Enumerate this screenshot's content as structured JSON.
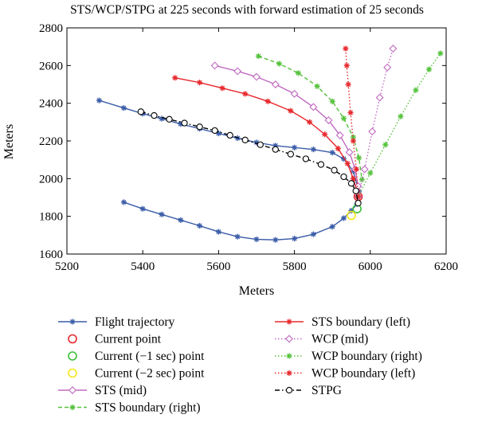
{
  "chart_data": {
    "type": "line",
    "title": "STS/WCP/STPG at 225 seconds with forward estimation of 25 seconds",
    "xlabel": "Meters",
    "ylabel": "Meters",
    "xlim": [
      5200,
      6200
    ],
    "ylim": [
      1600,
      2800
    ],
    "x_ticks": [
      "5200",
      "5400",
      "5600",
      "5800",
      "6000",
      "6200"
    ],
    "y_ticks": [
      "1600",
      "1800",
      "2000",
      "2200",
      "2400",
      "2600",
      "2800"
    ],
    "grid": false,
    "legend_position": "below-plot",
    "series": [
      {
        "name": "Flight trajectory",
        "color": "#3a5ca8",
        "marker": "asterisk",
        "line": "solid",
        "x": [
          5350,
          5400,
          5450,
          5500,
          5550,
          5600,
          5650,
          5700,
          5750,
          5800,
          5850,
          5900,
          5930,
          5950,
          5965
        ],
        "y": [
          1875,
          1840,
          1810,
          1780,
          1750,
          1718,
          1692,
          1678,
          1675,
          1682,
          1705,
          1745,
          1790,
          1830,
          1865
        ]
      },
      {
        "name": "Flight trajectory",
        "color": "#3a5ca8",
        "marker": "asterisk",
        "line": "solid",
        "x": [
          5285,
          5350,
          5400,
          5450,
          5500,
          5550,
          5600,
          5650,
          5700,
          5750,
          5800,
          5850,
          5900,
          5930,
          5955,
          5970
        ],
        "y": [
          2415,
          2375,
          2345,
          2318,
          2290,
          2265,
          2240,
          2215,
          2192,
          2175,
          2165,
          2155,
          2138,
          2105,
          2040,
          1930
        ]
      },
      {
        "name": "Current point",
        "color": "#e8282d",
        "marker": "circle",
        "line": "none",
        "x": [
          5968
        ],
        "y": [
          1905
        ]
      },
      {
        "name": "Current (−1 sec) point",
        "color": "#3cbf3c",
        "marker": "circle",
        "line": "none",
        "x": [
          5965
        ],
        "y": [
          1840
        ]
      },
      {
        "name": "Current (−2 sec) point",
        "color": "#f2e61a",
        "marker": "circle",
        "line": "none",
        "x": [
          5950
        ],
        "y": [
          1805
        ]
      },
      {
        "name": "STS (mid)",
        "color": "#c06ac0",
        "marker": "diamond",
        "line": "solid",
        "x": [
          5590,
          5650,
          5700,
          5750,
          5800,
          5850,
          5890,
          5920,
          5945,
          5960,
          5968
        ],
        "y": [
          2600,
          2570,
          2540,
          2500,
          2450,
          2380,
          2310,
          2230,
          2140,
          2050,
          1960
        ]
      },
      {
        "name": "STS boundary (right)",
        "color": "#55c23c",
        "marker": "asterisk",
        "line": "dashed",
        "x": [
          5705,
          5760,
          5810,
          5860,
          5900,
          5930,
          5955,
          5970,
          5978
        ],
        "y": [
          2650,
          2610,
          2560,
          2490,
          2410,
          2320,
          2220,
          2110,
          1995
        ]
      },
      {
        "name": "STS boundary (left)",
        "color": "#e8282d",
        "marker": "asterisk",
        "line": "solid",
        "x": [
          5485,
          5550,
          5610,
          5670,
          5730,
          5790,
          5840,
          5880,
          5915,
          5940,
          5955,
          5965
        ],
        "y": [
          2535,
          2510,
          2480,
          2450,
          2410,
          2360,
          2300,
          2235,
          2160,
          2080,
          2000,
          1935
        ]
      },
      {
        "name": "WCP (mid)",
        "color": "#c06ac0",
        "marker": "diamond",
        "line": "dotted",
        "x": [
          5968,
          5985,
          6005,
          6025,
          6045,
          6060
        ],
        "y": [
          1905,
          2050,
          2250,
          2430,
          2590,
          2690
        ]
      },
      {
        "name": "WCP boundary (right)",
        "color": "#55c23c",
        "marker": "asterisk",
        "line": "dotted",
        "x": [
          5968,
          6000,
          6040,
          6080,
          6120,
          6155,
          6185
        ],
        "y": [
          1905,
          2030,
          2180,
          2330,
          2470,
          2580,
          2665
        ]
      },
      {
        "name": "WCP boundary (left)",
        "color": "#e8282d",
        "marker": "asterisk",
        "line": "dotted",
        "x": [
          5968,
          5963,
          5955,
          5948,
          5942,
          5938,
          5935
        ],
        "y": [
          1905,
          2050,
          2200,
          2350,
          2500,
          2600,
          2690
        ]
      },
      {
        "name": "STPG",
        "color": "#000000",
        "marker": "circle-open",
        "line": "dashdot",
        "x": [
          5395,
          5430,
          5470,
          5510,
          5550,
          5590,
          5630,
          5670,
          5710,
          5750,
          5790,
          5830,
          5870,
          5905,
          5930,
          5950,
          5962,
          5968
        ],
        "y": [
          2355,
          2335,
          2315,
          2295,
          2275,
          2255,
          2230,
          2205,
          2180,
          2155,
          2130,
          2105,
          2075,
          2045,
          2010,
          1975,
          1935,
          1870
        ]
      }
    ],
    "legend": [
      {
        "label": "Flight trajectory",
        "color": "#3a5ca8",
        "marker": "asterisk",
        "line": "solid"
      },
      {
        "label": "Current point",
        "color": "#e8282d",
        "marker": "circle",
        "line": "none"
      },
      {
        "label": "Current (−1 sec) point",
        "color": "#3cbf3c",
        "marker": "circle",
        "line": "none"
      },
      {
        "label": "Current (−2 sec) point",
        "color": "#f2e61a",
        "marker": "circle",
        "line": "none"
      },
      {
        "label": "STS (mid)",
        "color": "#c06ac0",
        "marker": "diamond",
        "line": "solid"
      },
      {
        "label": "STS boundary (right)",
        "color": "#55c23c",
        "marker": "asterisk",
        "line": "dashed"
      },
      {
        "label": "STS boundary (left)",
        "color": "#e8282d",
        "marker": "asterisk",
        "line": "solid"
      },
      {
        "label": "WCP (mid)",
        "color": "#c06ac0",
        "marker": "diamond",
        "line": "dotted"
      },
      {
        "label": "WCP boundary (right)",
        "color": "#55c23c",
        "marker": "asterisk",
        "line": "dotted"
      },
      {
        "label": "WCP boundary (left)",
        "color": "#e8282d",
        "marker": "asterisk",
        "line": "dotted"
      },
      {
        "label": "STPG",
        "color": "#000000",
        "marker": "circle-open",
        "line": "dashdot"
      }
    ]
  }
}
